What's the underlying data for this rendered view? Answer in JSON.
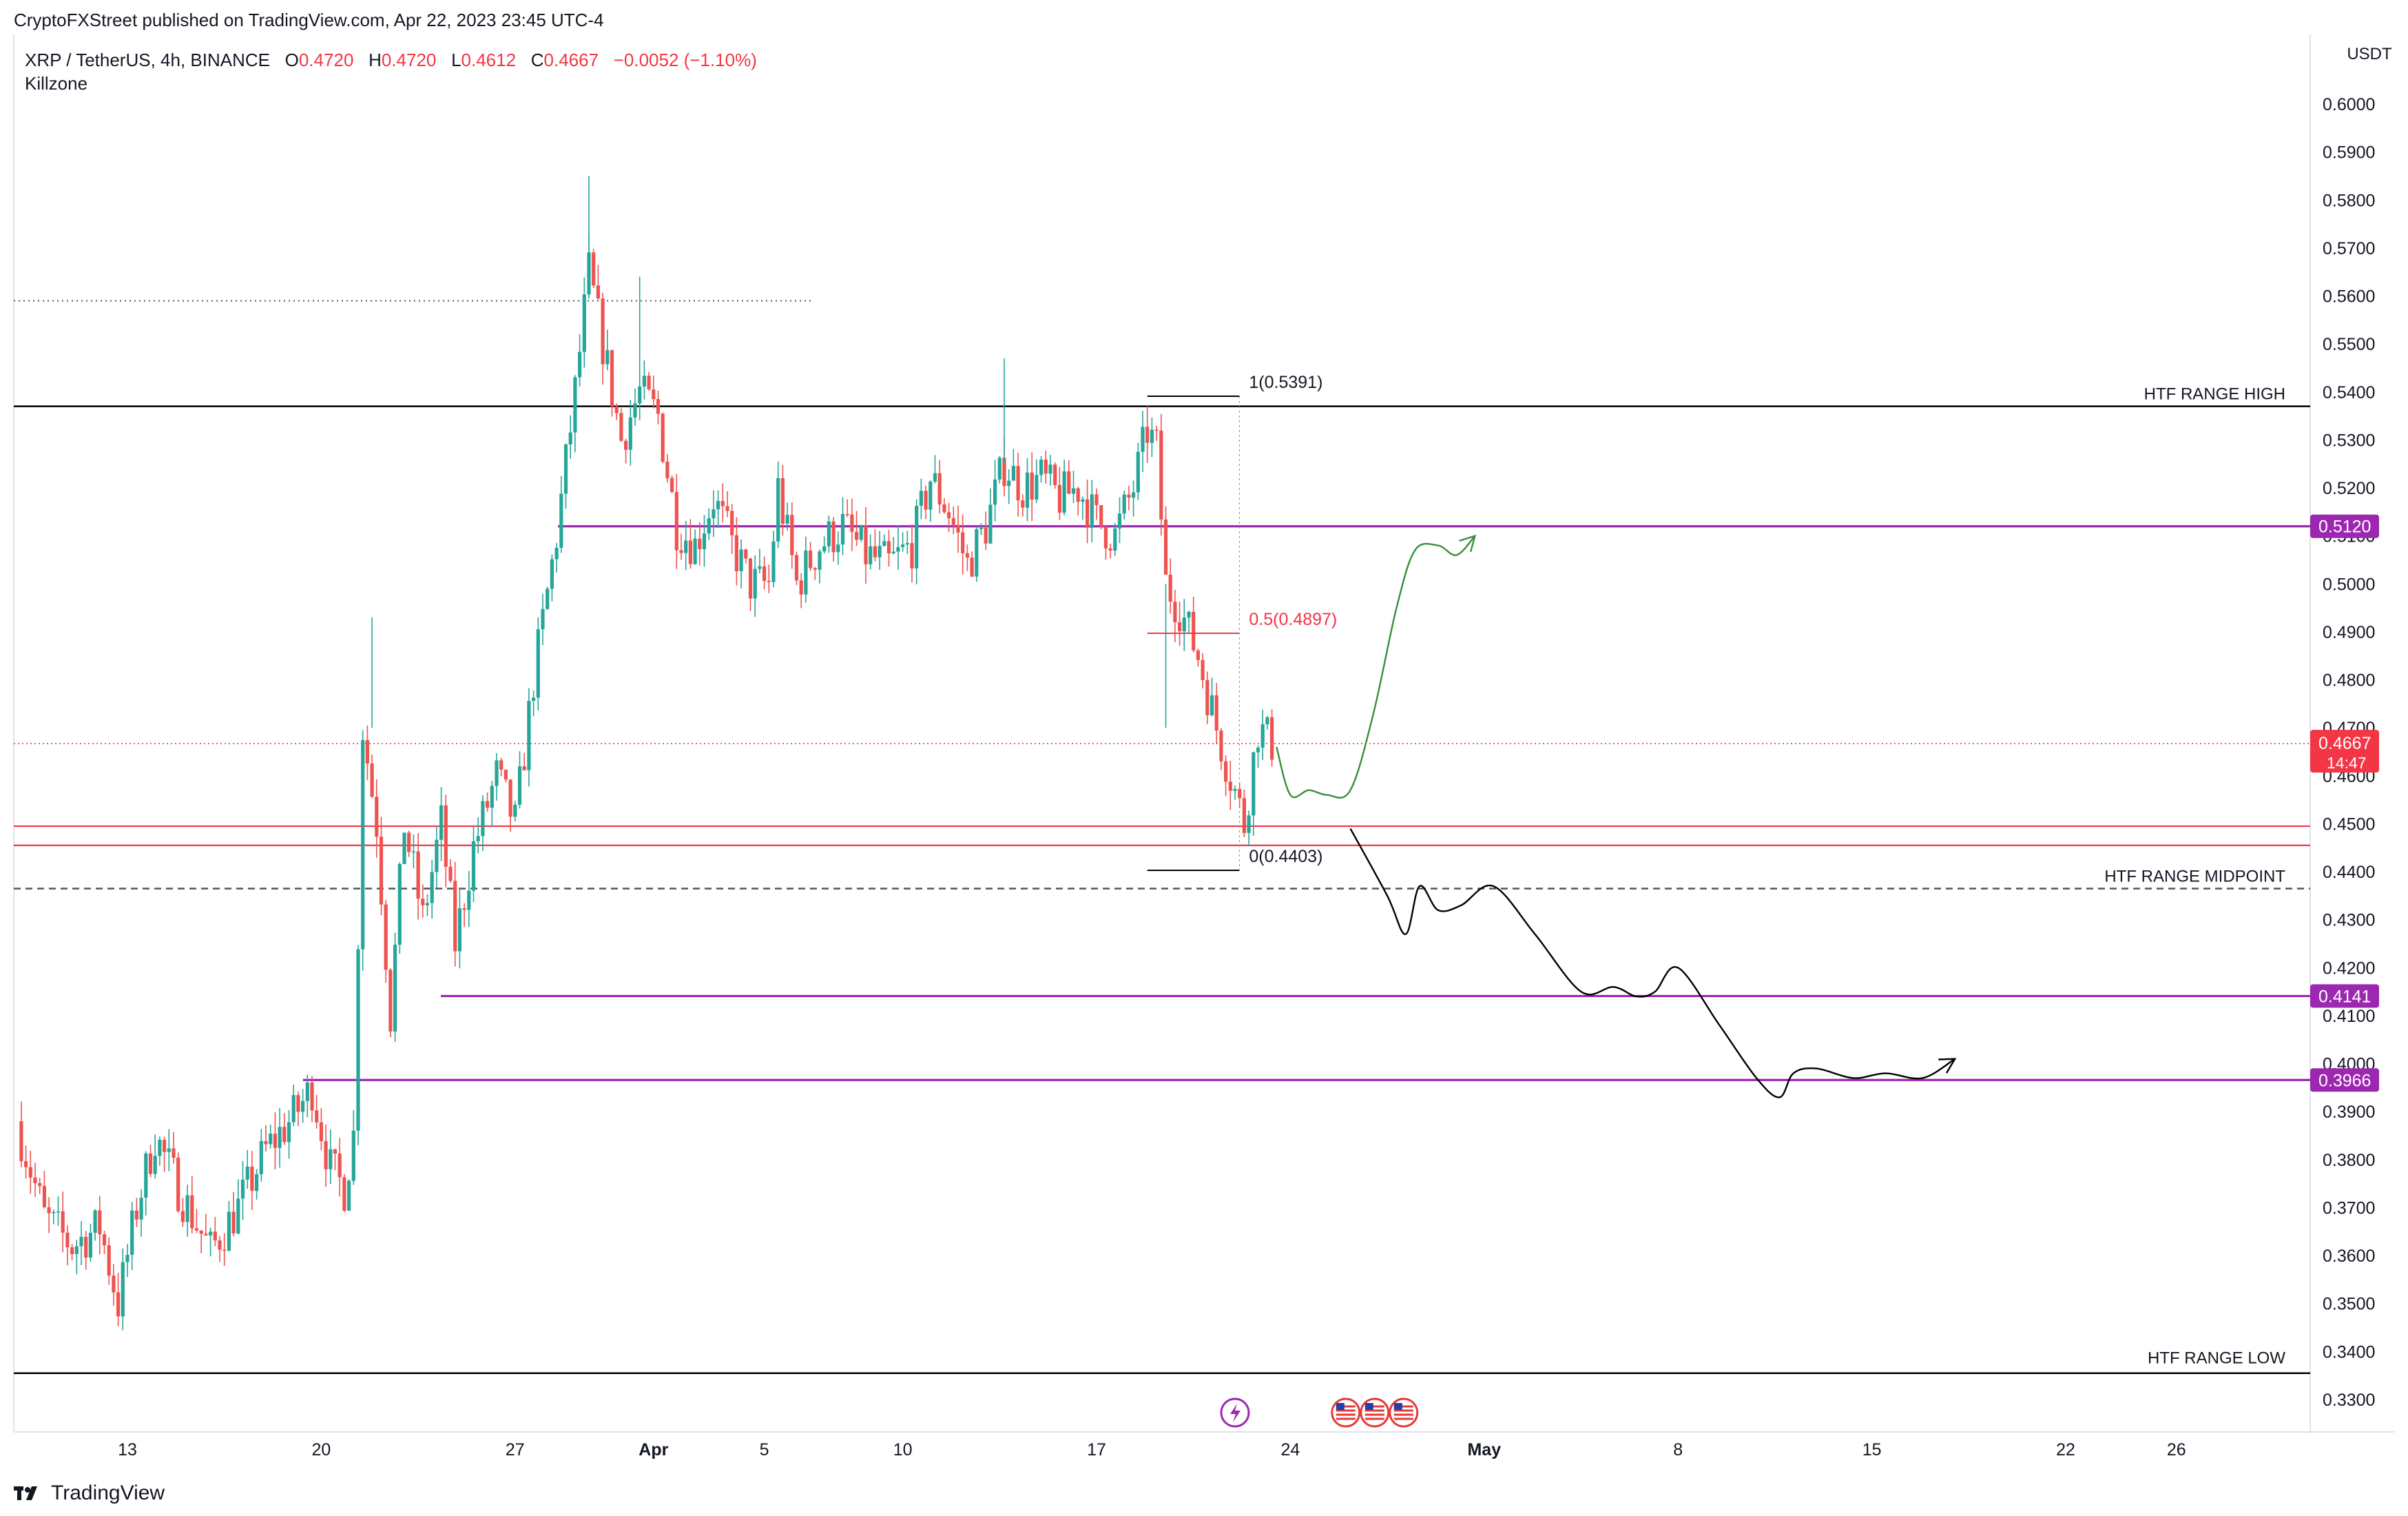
{
  "publisher": "CryptoFXStreet published on TradingView.com, Apr 22, 2023 23:45 UTC-4",
  "legend": {
    "symbol": "XRP / TetherUS, 4h, BINANCE",
    "o_label": "O",
    "o": "0.4720",
    "h_label": "H",
    "h": "0.4720",
    "l_label": "L",
    "l": "0.4612",
    "c_label": "C",
    "c": "0.4667",
    "change": "−0.0052 (−1.10%)"
  },
  "indicator": "Killzone",
  "brand": "TradingView",
  "colors": {
    "up": "#26a69a",
    "down": "#ef5350",
    "purple": "#9c27b0",
    "red_line": "#f23645",
    "green_path": "#388e3c",
    "black": "#000000"
  },
  "chart_data": {
    "type": "candlestick",
    "timeframe": "4h",
    "y_unit": "USDT",
    "y_ticks": [
      "0.6000",
      "0.5900",
      "0.5800",
      "0.5700",
      "0.5600",
      "0.5500",
      "0.5400",
      "0.5300",
      "0.5200",
      "0.5100",
      "0.5000",
      "0.4900",
      "0.4800",
      "0.4700",
      "0.4600",
      "0.4500",
      "0.4400",
      "0.4300",
      "0.4200",
      "0.4100",
      "0.4000",
      "0.3900",
      "0.3800",
      "0.3700",
      "0.3600",
      "0.3500",
      "0.3400",
      "0.3300"
    ],
    "x_ticks": [
      {
        "label": "13",
        "date": "2023-03-13",
        "bold": false
      },
      {
        "label": "20",
        "date": "2023-03-20",
        "bold": false
      },
      {
        "label": "27",
        "date": "2023-03-27",
        "bold": false
      },
      {
        "label": "Apr",
        "date": "2023-04-01",
        "bold": true
      },
      {
        "label": "5",
        "date": "2023-04-05",
        "bold": false
      },
      {
        "label": "10",
        "date": "2023-04-10",
        "bold": false
      },
      {
        "label": "17",
        "date": "2023-04-17",
        "bold": false
      },
      {
        "label": "24",
        "date": "2023-04-24",
        "bold": false
      },
      {
        "label": "May",
        "date": "2023-05-01",
        "bold": true
      },
      {
        "label": "8",
        "date": "2023-05-08",
        "bold": false
      },
      {
        "label": "15",
        "date": "2023-05-15",
        "bold": false
      },
      {
        "label": "22",
        "date": "2023-05-22",
        "bold": false
      },
      {
        "label": "26",
        "date": "2023-05-26",
        "bold": false
      }
    ],
    "price_path": [
      [
        "2023-03-09T00:00",
        0.388
      ],
      [
        "2023-03-10T00:00",
        0.368
      ],
      [
        "2023-03-11T00:00",
        0.362
      ],
      [
        "2023-03-12T00:00",
        0.366
      ],
      [
        "2023-03-12T16:00",
        0.35
      ],
      [
        "2023-03-13T08:00",
        0.37
      ],
      [
        "2023-03-14T00:00",
        0.385
      ],
      [
        "2023-03-15T00:00",
        0.372
      ],
      [
        "2023-03-16T00:00",
        0.361
      ],
      [
        "2023-03-17T00:00",
        0.37
      ],
      [
        "2023-03-18T00:00",
        0.382
      ],
      [
        "2023-03-19T00:00",
        0.389
      ],
      [
        "2023-03-19T16:00",
        0.395
      ],
      [
        "2023-03-20T08:00",
        0.378
      ],
      [
        "2023-03-20T20:00",
        0.374
      ],
      [
        "2023-03-21T04:00",
        0.385
      ],
      [
        "2023-03-21T12:00",
        0.47
      ],
      [
        "2023-03-22T00:00",
        0.45
      ],
      [
        "2023-03-22T12:00",
        0.41
      ],
      [
        "2023-03-23T00:00",
        0.45
      ],
      [
        "2023-03-23T16:00",
        0.43
      ],
      [
        "2023-03-24T08:00",
        0.45
      ],
      [
        "2023-03-24T20:00",
        0.425
      ],
      [
        "2023-03-25T12:00",
        0.445
      ],
      [
        "2023-03-26T08:00",
        0.46
      ],
      [
        "2023-03-27T00:00",
        0.45
      ],
      [
        "2023-03-27T16:00",
        0.48
      ],
      [
        "2023-03-28T12:00",
        0.51
      ],
      [
        "2023-03-29T04:00",
        0.54
      ],
      [
        "2023-03-29T16:00",
        0.565
      ],
      [
        "2023-03-30T08:00",
        0.545
      ],
      [
        "2023-03-30T20:00",
        0.53
      ],
      [
        "2023-03-31T12:00",
        0.54
      ],
      [
        "2023-04-01T04:00",
        0.535
      ],
      [
        "2023-04-01T20:00",
        0.512
      ],
      [
        "2023-04-02T12:00",
        0.508
      ],
      [
        "2023-04-03T04:00",
        0.518
      ],
      [
        "2023-04-03T20:00",
        0.508
      ],
      [
        "2023-04-04T12:00",
        0.5
      ],
      [
        "2023-04-05T04:00",
        0.5
      ],
      [
        "2023-04-05T12:00",
        0.52
      ],
      [
        "2023-04-06T04:00",
        0.5
      ],
      [
        "2023-04-07T00:00",
        0.508
      ],
      [
        "2023-04-07T20:00",
        0.512
      ],
      [
        "2023-04-08T16:00",
        0.506
      ],
      [
        "2023-04-09T12:00",
        0.504
      ],
      [
        "2023-04-10T08:00",
        0.508
      ],
      [
        "2023-04-11T00:00",
        0.522
      ],
      [
        "2023-04-11T16:00",
        0.515
      ],
      [
        "2023-04-12T08:00",
        0.504
      ],
      [
        "2023-04-13T00:00",
        0.512
      ],
      [
        "2023-04-13T16:00",
        0.525
      ],
      [
        "2023-04-14T08:00",
        0.52
      ],
      [
        "2023-04-15T00:00",
        0.522
      ],
      [
        "2023-04-15T16:00",
        0.518
      ],
      [
        "2023-04-16T08:00",
        0.52
      ],
      [
        "2023-04-17T00:00",
        0.513
      ],
      [
        "2023-04-17T16:00",
        0.51
      ],
      [
        "2023-04-18T08:00",
        0.52
      ],
      [
        "2023-04-18T20:00",
        0.532
      ],
      [
        "2023-04-19T04:00",
        0.528
      ],
      [
        "2023-04-19T12:00",
        0.5
      ],
      [
        "2023-04-20T00:00",
        0.495
      ],
      [
        "2023-04-20T16:00",
        0.485
      ],
      [
        "2023-04-21T08:00",
        0.47
      ],
      [
        "2023-04-21T20:00",
        0.46
      ],
      [
        "2023-04-22T08:00",
        0.45
      ],
      [
        "2023-04-22T20:00",
        0.47
      ],
      [
        "2023-04-23T08:00",
        0.4667
      ]
    ],
    "levels": [
      {
        "label": "HTF RANGE HIGH",
        "price": 0.537
      },
      {
        "label": "HTF RANGE MIDPOINT",
        "price": 0.4365
      },
      {
        "label": "HTF RANGE LOW",
        "price": 0.3355
      },
      {
        "label": "0.5120",
        "price": 0.512,
        "axis_tag": true
      },
      {
        "label": "0.4141",
        "price": 0.4141,
        "axis_tag": true
      },
      {
        "label": "0.3966",
        "price": 0.3966,
        "axis_tag": true
      }
    ],
    "red_zone": [
      0.4455,
      0.4495
    ],
    "dotted_level": 0.559,
    "current_price": {
      "label": "0.4667",
      "countdown": "14:47"
    },
    "fib": [
      {
        "label": "1(0.5391)",
        "price": 0.5391
      },
      {
        "label": "0.5(0.4897)",
        "price": 0.4897
      },
      {
        "label": "0(0.4403)",
        "price": 0.4403
      }
    ],
    "bullish_projection": [
      [
        "2023-04-23T12:00",
        0.466
      ],
      [
        "2023-04-24T00:00",
        0.456
      ],
      [
        "2023-04-24T16:00",
        0.457
      ],
      [
        "2023-04-25T08:00",
        0.456
      ],
      [
        "2023-04-26T04:00",
        0.457
      ],
      [
        "2023-04-27T00:00",
        0.473
      ],
      [
        "2023-04-27T20:00",
        0.495
      ],
      [
        "2023-04-28T12:00",
        0.507
      ],
      [
        "2023-04-29T08:00",
        0.508
      ],
      [
        "2023-04-30T00:00",
        0.506
      ],
      [
        "2023-04-30T16:00",
        0.51
      ]
    ],
    "bearish_projection": [
      [
        "2023-04-26T04:00",
        0.449
      ],
      [
        "2023-04-27T12:00",
        0.435
      ],
      [
        "2023-04-28T04:00",
        0.427
      ],
      [
        "2023-04-28T16:00",
        0.437
      ],
      [
        "2023-04-29T08:00",
        0.432
      ],
      [
        "2023-04-30T04:00",
        0.433
      ],
      [
        "2023-05-01T08:00",
        0.437
      ],
      [
        "2023-05-02T20:00",
        0.427
      ],
      [
        "2023-05-04T12:00",
        0.415
      ],
      [
        "2023-05-05T16:00",
        0.416
      ],
      [
        "2023-05-06T12:00",
        0.414
      ],
      [
        "2023-05-07T04:00",
        0.415
      ],
      [
        "2023-05-08T00:00",
        0.42
      ],
      [
        "2023-05-09T12:00",
        0.408
      ],
      [
        "2023-05-10T20:00",
        0.397
      ],
      [
        "2023-05-11T16:00",
        0.393
      ],
      [
        "2023-05-12T04:00",
        0.398
      ],
      [
        "2023-05-13T00:00",
        0.399
      ],
      [
        "2023-05-14T08:00",
        0.397
      ],
      [
        "2023-05-15T12:00",
        0.398
      ],
      [
        "2023-05-16T20:00",
        0.397
      ],
      [
        "2023-05-18T00:00",
        0.401
      ]
    ]
  }
}
